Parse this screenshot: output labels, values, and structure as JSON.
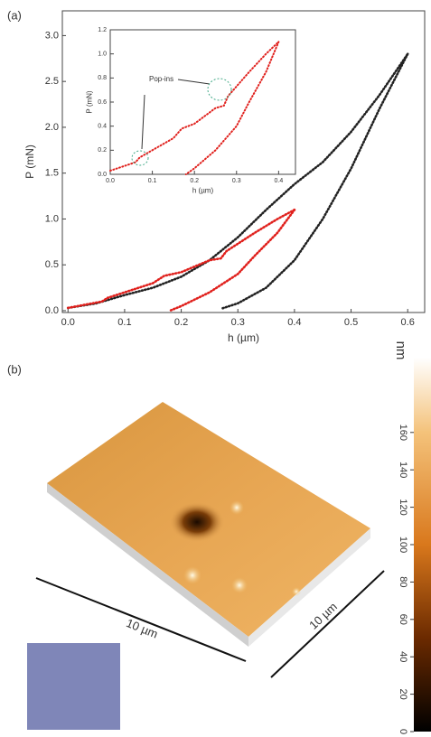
{
  "panel_labels": [
    "(a)",
    "(b)"
  ],
  "chart_data": [
    {
      "type": "line",
      "xlabel": "h (µm)",
      "ylabel": "P (mN)",
      "xlim": [
        -0.01,
        0.63
      ],
      "ylim": [
        -0.02,
        3.27
      ],
      "xticks": [
        {
          "value": 0,
          "label": "0.0"
        },
        0.1,
        0.2,
        0.3,
        0.4,
        0.5,
        0.6
      ],
      "yticks": [
        {
          "value": 0,
          "label": "0.0"
        },
        0.5,
        {
          "value": 1,
          "label": "1.0"
        },
        1.5,
        {
          "value": 2,
          "label": "2.0"
        },
        2.5,
        {
          "value": 3,
          "label": "3.0"
        }
      ],
      "series": [
        {
          "color": "#222222",
          "x": [
            0,
            0.05,
            0.1,
            0.15,
            0.2,
            0.25,
            0.3,
            0.35,
            0.4,
            0.45,
            0.5,
            0.55,
            0.6
          ],
          "values": [
            0.03,
            0.08,
            0.17,
            0.25,
            0.37,
            0.55,
            0.8,
            1.1,
            1.38,
            1.62,
            1.95,
            2.35,
            2.8
          ]
        },
        {
          "color": "#222222",
          "x": [
            0.6,
            0.55,
            0.5,
            0.45,
            0.4,
            0.35,
            0.3,
            0.27
          ],
          "values": [
            2.8,
            2.2,
            1.55,
            1.0,
            0.55,
            0.25,
            0.08,
            0.02
          ]
        },
        {
          "color": "#e0211d",
          "x": [
            0,
            0.06,
            0.07,
            0.1,
            0.15,
            0.17,
            0.2,
            0.25,
            0.27,
            0.28,
            0.33,
            0.37,
            0.4
          ],
          "values": [
            0.03,
            0.1,
            0.14,
            0.2,
            0.3,
            0.38,
            0.42,
            0.55,
            0.57,
            0.65,
            0.85,
            1.0,
            1.1
          ]
        },
        {
          "color": "#e0211d",
          "x": [
            0.4,
            0.37,
            0.33,
            0.3,
            0.25,
            0.2,
            0.18
          ],
          "values": [
            1.1,
            0.85,
            0.6,
            0.4,
            0.2,
            0.05,
            0.0
          ]
        }
      ]
    },
    {
      "type": "line",
      "xlabel": "h (µm)",
      "ylabel": "P (mN)",
      "annotation": "Pop-ins",
      "xlim": [
        0,
        0.44
      ],
      "ylim": [
        0,
        1.2
      ],
      "xticks": [
        {
          "value": 0,
          "label": "0.0"
        },
        0.1,
        0.2,
        0.3,
        0.4
      ],
      "yticks": [
        {
          "value": 0,
          "label": "0.0"
        },
        0.2,
        0.4,
        0.6,
        0.8,
        {
          "value": 1,
          "label": "1.0"
        },
        1.2
      ],
      "series": [
        {
          "color": "#e0211d",
          "x": [
            0,
            0.06,
            0.07,
            0.1,
            0.15,
            0.17,
            0.2,
            0.25,
            0.27,
            0.28,
            0.33,
            0.37,
            0.4
          ],
          "values": [
            0.03,
            0.1,
            0.14,
            0.2,
            0.3,
            0.38,
            0.42,
            0.55,
            0.57,
            0.65,
            0.85,
            1.0,
            1.1
          ]
        },
        {
          "color": "#e0211d",
          "x": [
            0.4,
            0.37,
            0.33,
            0.3,
            0.25,
            0.2,
            0.18
          ],
          "values": [
            1.1,
            0.85,
            0.6,
            0.4,
            0.2,
            0.05,
            0.0
          ]
        }
      ]
    },
    {
      "type": "colorbar",
      "ylabel": "nm",
      "ylim": [
        0,
        200
      ],
      "yticks": [
        0,
        20,
        40,
        60,
        80,
        100,
        120,
        140,
        160
      ]
    }
  ],
  "afm": {
    "scale_labels": [
      "10 µm",
      "10 µm"
    ]
  }
}
